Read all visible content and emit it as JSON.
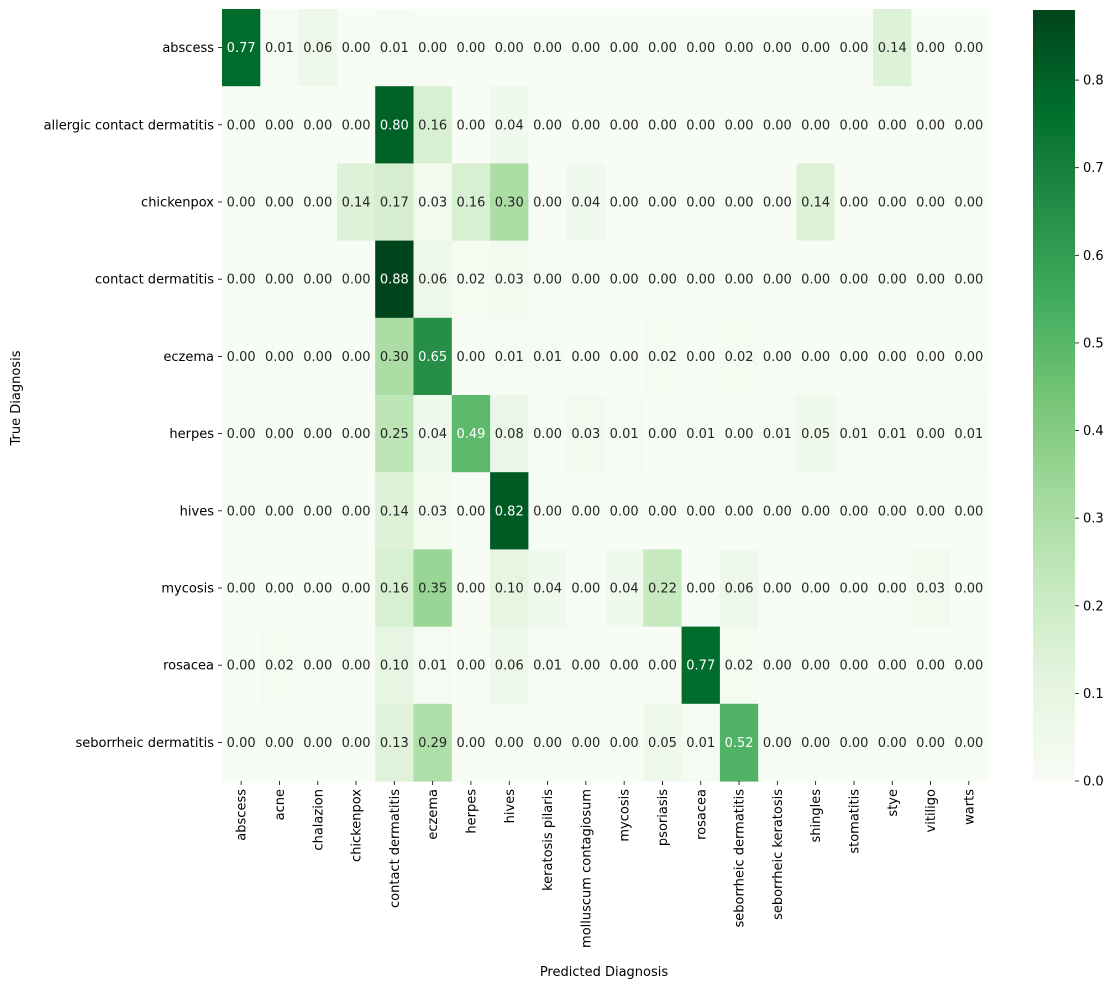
{
  "chart_data": {
    "type": "heatmap",
    "title": "",
    "xlabel": "Predicted Diagnosis",
    "ylabel": "True Diagnosis",
    "x_categories": [
      "abscess",
      "acne",
      "chalazion",
      "chickenpox",
      "contact dermatitis",
      "eczema",
      "herpes",
      "hives",
      "keratosis pilaris",
      "molluscum contagiosum",
      "mycosis",
      "psoriasis",
      "rosacea",
      "seborrheic dermatitis",
      "seborrheic keratosis",
      "shingles",
      "stomatitis",
      "stye",
      "vitiligo",
      "warts"
    ],
    "y_categories": [
      "abscess",
      "allergic contact dermatitis",
      "chickenpox",
      "contact dermatitis",
      "eczema",
      "herpes",
      "hives",
      "mycosis",
      "rosacea",
      "seborrheic dermatitis"
    ],
    "values": [
      [
        0.77,
        0.01,
        0.06,
        0.0,
        0.01,
        0.0,
        0.0,
        0.0,
        0.0,
        0.0,
        0.0,
        0.0,
        0.0,
        0.0,
        0.0,
        0.0,
        0.0,
        0.14,
        0.0,
        0.0
      ],
      [
        0.0,
        0.0,
        0.0,
        0.0,
        0.8,
        0.16,
        0.0,
        0.04,
        0.0,
        0.0,
        0.0,
        0.0,
        0.0,
        0.0,
        0.0,
        0.0,
        0.0,
        0.0,
        0.0,
        0.0
      ],
      [
        0.0,
        0.0,
        0.0,
        0.14,
        0.17,
        0.03,
        0.16,
        0.3,
        0.0,
        0.04,
        0.0,
        0.0,
        0.0,
        0.0,
        0.0,
        0.14,
        0.0,
        0.0,
        0.0,
        0.0
      ],
      [
        0.0,
        0.0,
        0.0,
        0.0,
        0.88,
        0.06,
        0.02,
        0.03,
        0.0,
        0.0,
        0.0,
        0.0,
        0.0,
        0.0,
        0.0,
        0.0,
        0.0,
        0.0,
        0.0,
        0.0
      ],
      [
        0.0,
        0.0,
        0.0,
        0.0,
        0.3,
        0.65,
        0.0,
        0.01,
        0.01,
        0.0,
        0.0,
        0.02,
        0.0,
        0.02,
        0.0,
        0.0,
        0.0,
        0.0,
        0.0,
        0.0
      ],
      [
        0.0,
        0.0,
        0.0,
        0.0,
        0.25,
        0.04,
        0.49,
        0.08,
        0.0,
        0.03,
        0.01,
        0.0,
        0.01,
        0.0,
        0.01,
        0.05,
        0.01,
        0.01,
        0.0,
        0.01
      ],
      [
        0.0,
        0.0,
        0.0,
        0.0,
        0.14,
        0.03,
        0.0,
        0.82,
        0.0,
        0.0,
        0.0,
        0.0,
        0.0,
        0.0,
        0.0,
        0.0,
        0.0,
        0.0,
        0.0,
        0.0
      ],
      [
        0.0,
        0.0,
        0.0,
        0.0,
        0.16,
        0.35,
        0.0,
        0.1,
        0.04,
        0.0,
        0.04,
        0.22,
        0.0,
        0.06,
        0.0,
        0.0,
        0.0,
        0.0,
        0.03,
        0.0
      ],
      [
        0.0,
        0.02,
        0.0,
        0.0,
        0.1,
        0.01,
        0.0,
        0.06,
        0.01,
        0.0,
        0.0,
        0.0,
        0.77,
        0.02,
        0.0,
        0.0,
        0.0,
        0.0,
        0.0,
        0.0
      ],
      [
        0.0,
        0.0,
        0.0,
        0.0,
        0.13,
        0.29,
        0.0,
        0.0,
        0.0,
        0.0,
        0.0,
        0.05,
        0.01,
        0.52,
        0.0,
        0.0,
        0.0,
        0.0,
        0.0,
        0.0
      ]
    ],
    "value_format": "0.00",
    "colormap": "Greens",
    "colormap_stops": [
      "#f7fcf5",
      "#e5f5e0",
      "#c7e9c0",
      "#a1d99b",
      "#74c476",
      "#41ab5d",
      "#238b45",
      "#006d2c",
      "#00441b"
    ],
    "vmin": 0.0,
    "vmax": 0.88,
    "colorbar_ticks": [
      0.0,
      0.1,
      0.2,
      0.3,
      0.4,
      0.5,
      0.6,
      0.7,
      0.8
    ],
    "colorbar_tick_labels": [
      "0.0",
      "0.1",
      "0.2",
      "0.3",
      "0.4",
      "0.5",
      "0.6",
      "0.7",
      "0.8"
    ],
    "grid": false,
    "legend": "colorbar-right"
  }
}
